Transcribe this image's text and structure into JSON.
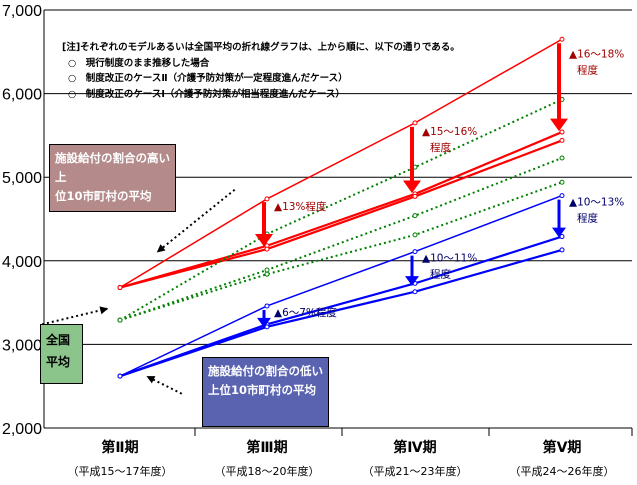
{
  "chart_data": {
    "type": "line",
    "ylim": [
      2000,
      7000
    ],
    "yticks": [
      2000,
      3000,
      4000,
      5000,
      6000,
      7000
    ],
    "ytick_labels": [
      "2,000",
      "3,000",
      "4,000",
      "5,000",
      "6,000",
      "7,000"
    ],
    "categories": [
      {
        "name": "第Ⅱ期",
        "sub": "（平成15～17年度）"
      },
      {
        "name": "第Ⅲ期",
        "sub": "（平成18～20年度）"
      },
      {
        "name": "第Ⅳ期",
        "sub": "（平成21～23年度）"
      },
      {
        "name": "第Ⅴ期",
        "sub": "（平成24～26年度）"
      }
    ],
    "series": [
      {
        "group": "top10",
        "variant": "current",
        "color": "#ff0000",
        "style": "solid",
        "values": [
          3680,
          4740,
          5650,
          6650
        ]
      },
      {
        "group": "top10",
        "variant": "reform2",
        "color": "#ff0000",
        "style": "solid",
        "values": [
          3680,
          4180,
          4800,
          5540
        ]
      },
      {
        "group": "top10",
        "variant": "reform1",
        "color": "#ff0000",
        "style": "solid",
        "values": [
          3680,
          4140,
          4770,
          5440
        ]
      },
      {
        "group": "national",
        "variant": "current",
        "color": "#008000",
        "style": "dotted",
        "values": [
          3290,
          4320,
          5120,
          5930
        ]
      },
      {
        "group": "national",
        "variant": "reform2",
        "color": "#008000",
        "style": "dotted",
        "values": [
          3290,
          3890,
          4540,
          5230
        ]
      },
      {
        "group": "national",
        "variant": "reform1",
        "color": "#008000",
        "style": "dotted",
        "values": [
          3290,
          3840,
          4310,
          4940
        ]
      },
      {
        "group": "bottom10",
        "variant": "current",
        "color": "#0000ff",
        "style": "solid",
        "values": [
          2620,
          3460,
          4110,
          4780
        ]
      },
      {
        "group": "bottom10",
        "variant": "reform2",
        "color": "#0000ff",
        "style": "solid",
        "values": [
          2620,
          3240,
          3730,
          4290
        ]
      },
      {
        "group": "bottom10",
        "variant": "reform1",
        "color": "#0000ff",
        "style": "solid",
        "values": [
          2620,
          3210,
          3630,
          4130
        ]
      }
    ],
    "arrows": [
      {
        "color": "#ff0000",
        "x_index": 1,
        "from": 4750,
        "to": 4170,
        "label": "▲13%程度"
      },
      {
        "color": "#ff0000",
        "x_index": 2,
        "from": 5650,
        "to": 4810,
        "label": "▲15～16%程度"
      },
      {
        "color": "#ff0000",
        "x_index": 3,
        "from": 6650,
        "to": 5550,
        "label": "▲16～18%程度"
      },
      {
        "color": "#0000ff",
        "x_index": 1,
        "from": 3460,
        "to": 3200,
        "label": "▲6～7%程度"
      },
      {
        "color": "#0000ff",
        "x_index": 2,
        "from": 4110,
        "to": 3700,
        "label": "▲10～11%程度"
      },
      {
        "color": "#0000ff",
        "x_index": 3,
        "from": 4780,
        "to": 4280,
        "label": "▲10～13%程度"
      }
    ],
    "callout_pointers": [
      {
        "from_x_index": 0.78,
        "from_value": 4850,
        "to_x_index": 0.25,
        "to_value": 4100
      },
      {
        "from_x_index": -0.53,
        "from_value": 3240,
        "to_x_index": -0.08,
        "to_value": 3430
      },
      {
        "from_x_index": 0.42,
        "from_value": 2410,
        "to_x_index": 0.18,
        "to_value": 2620
      }
    ],
    "grid": true
  },
  "note": {
    "title": "[注]それぞれのモデルあるいは全国平均の折れ線グラフは、上から順に、以下の通りである。",
    "items": [
      "○　現行制度のまま推移した場合",
      "○　制度改正のケースⅡ（介護予防対策が一定程度進んだケース）",
      "○　制度改正のケースⅠ（介護予防対策が相当程度進んだケース）"
    ]
  },
  "callouts": {
    "top10": [
      "施設給付の割合の高い上",
      "位10市町村の平均"
    ],
    "national": [
      "全国",
      "平均"
    ],
    "bottom10": [
      "施設給付の割合の低い",
      "上位10市町村の平均"
    ]
  }
}
